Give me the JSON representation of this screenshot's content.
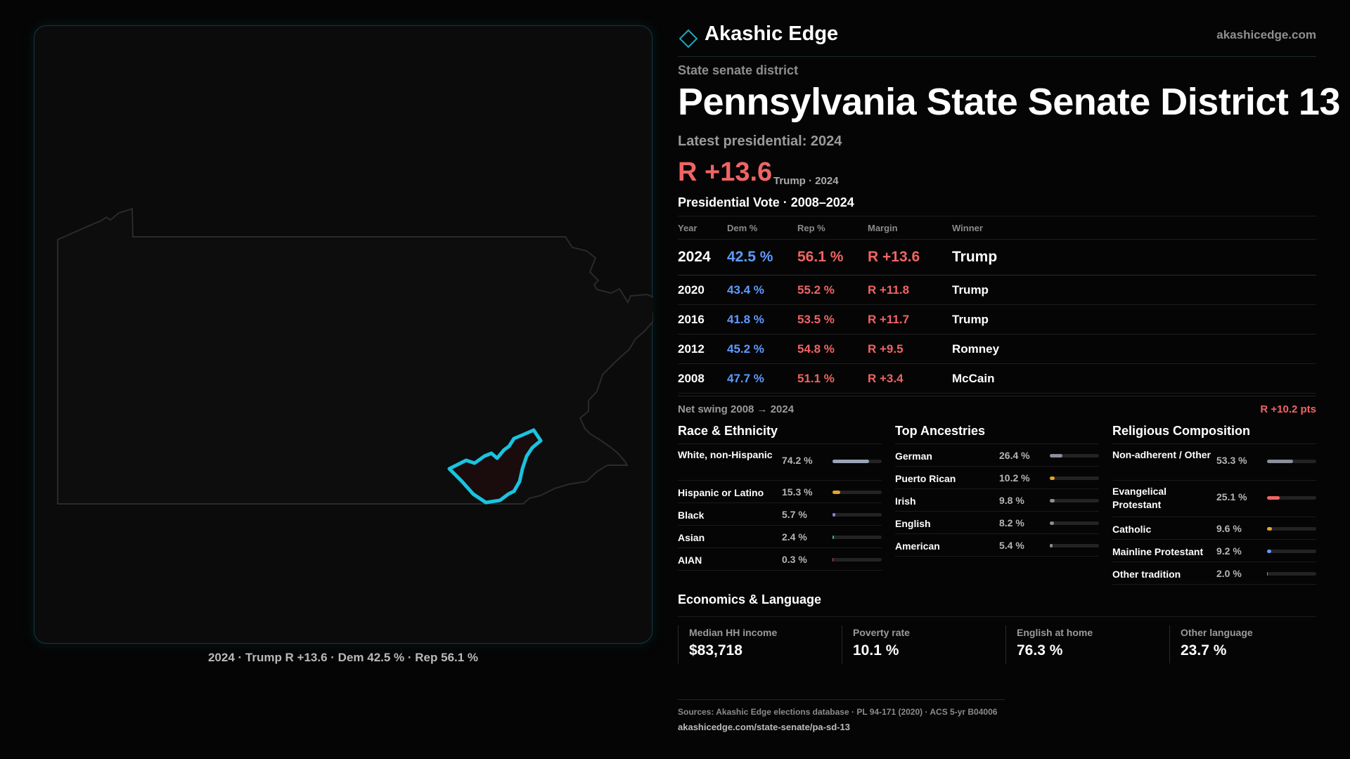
{
  "brand": {
    "name": "Akashic Edge",
    "url": "akashicedge.com",
    "accent": "#1aa8c0"
  },
  "eyebrow": "State senate district",
  "title": "Pennsylvania State Senate District 13",
  "latest_label": "Latest presidential: 2024",
  "headline": {
    "margin": "R +13.6",
    "sub": "Trump · 2024"
  },
  "vote_section_label": "Presidential Vote · 2008–2024",
  "vote_table": {
    "headers": {
      "year": "Year",
      "dem": "Dem %",
      "rep": "Rep %",
      "margin": "Margin",
      "winner": "Winner"
    },
    "rows": [
      {
        "year": "2024",
        "dem": "42.5 %",
        "rep": "56.1 %",
        "margin": "R +13.6",
        "winner": "Trump"
      },
      {
        "year": "2020",
        "dem": "43.4 %",
        "rep": "55.2 %",
        "margin": "R +11.8",
        "winner": "Trump"
      },
      {
        "year": "2016",
        "dem": "41.8 %",
        "rep": "53.5 %",
        "margin": "R +11.7",
        "winner": "Trump"
      },
      {
        "year": "2012",
        "dem": "45.2 %",
        "rep": "54.8 %",
        "margin": "R +9.5",
        "winner": "Romney"
      },
      {
        "year": "2008",
        "dem": "47.7 %",
        "rep": "51.1 %",
        "margin": "R +3.4",
        "winner": "McCain"
      }
    ]
  },
  "swing": {
    "label": "Net swing 2008 → 2024",
    "value": "R +10.2 pts"
  },
  "race": {
    "title": "Race & Ethnicity",
    "items": [
      {
        "label": "White, non-Hispanic",
        "value": "74.2 %",
        "pct": 74.2,
        "color": "#9aa6b8"
      },
      {
        "label": "Hispanic or Latino",
        "value": "15.3 %",
        "pct": 15.3,
        "color": "#e3a32a"
      },
      {
        "label": "Black",
        "value": "5.7 %",
        "pct": 5.7,
        "color": "#8a7cf0"
      },
      {
        "label": "Asian",
        "value": "2.4 %",
        "pct": 2.4,
        "color": "#2fbf7a"
      },
      {
        "label": "AIAN",
        "value": "0.3 %",
        "pct": 0.3,
        "color": "#c0506a"
      }
    ]
  },
  "ancestry": {
    "title": "Top Ancestries",
    "items": [
      {
        "label": "German",
        "value": "26.4 %",
        "pct": 26.4,
        "color": "#8a8f98"
      },
      {
        "label": "Puerto Rican",
        "value": "10.2 %",
        "pct": 10.2,
        "color": "#e3a32a"
      },
      {
        "label": "Irish",
        "value": "9.8 %",
        "pct": 9.8,
        "color": "#8a8f98"
      },
      {
        "label": "English",
        "value": "8.2 %",
        "pct": 8.2,
        "color": "#8a8f98"
      },
      {
        "label": "American",
        "value": "5.4 %",
        "pct": 5.4,
        "color": "#8a8f98"
      }
    ]
  },
  "religion": {
    "title": "Religious Composition",
    "items": [
      {
        "label": "Non-adherent / Other",
        "value": "53.3 %",
        "pct": 53.3,
        "color": "#8a8f98"
      },
      {
        "label": "Evangelical Protestant",
        "value": "25.1 %",
        "pct": 25.1,
        "color": "#f06464"
      },
      {
        "label": "Catholic",
        "value": "9.6 %",
        "pct": 9.6,
        "color": "#e3a32a"
      },
      {
        "label": "Mainline Protestant",
        "value": "9.2 %",
        "pct": 9.2,
        "color": "#5f9bff"
      },
      {
        "label": "Other tradition",
        "value": "2.0 %",
        "pct": 2.0,
        "color": "#8a8f98"
      }
    ]
  },
  "economics": {
    "title": "Economics & Language",
    "items": [
      {
        "label": "Median HH income",
        "value": "$83,718"
      },
      {
        "label": "Poverty rate",
        "value": "10.1 %"
      },
      {
        "label": "English at home",
        "value": "76.3 %"
      },
      {
        "label": "Other language",
        "value": "23.7 %"
      }
    ]
  },
  "map_caption": "2024 · Trump R +13.6 · Dem 42.5 % · Rep 56.1 %",
  "map_colors": {
    "state_outline": "#2a2a2a",
    "district_stroke": "#19c4e0",
    "district_fill": "#1a0c0c"
  },
  "sources": {
    "line": "Sources: Akashic Edge elections database · PL 94-171 (2020) · ACS 5-yr B04006",
    "url": "akashicedge.com/state-senate/pa-sd-13"
  }
}
